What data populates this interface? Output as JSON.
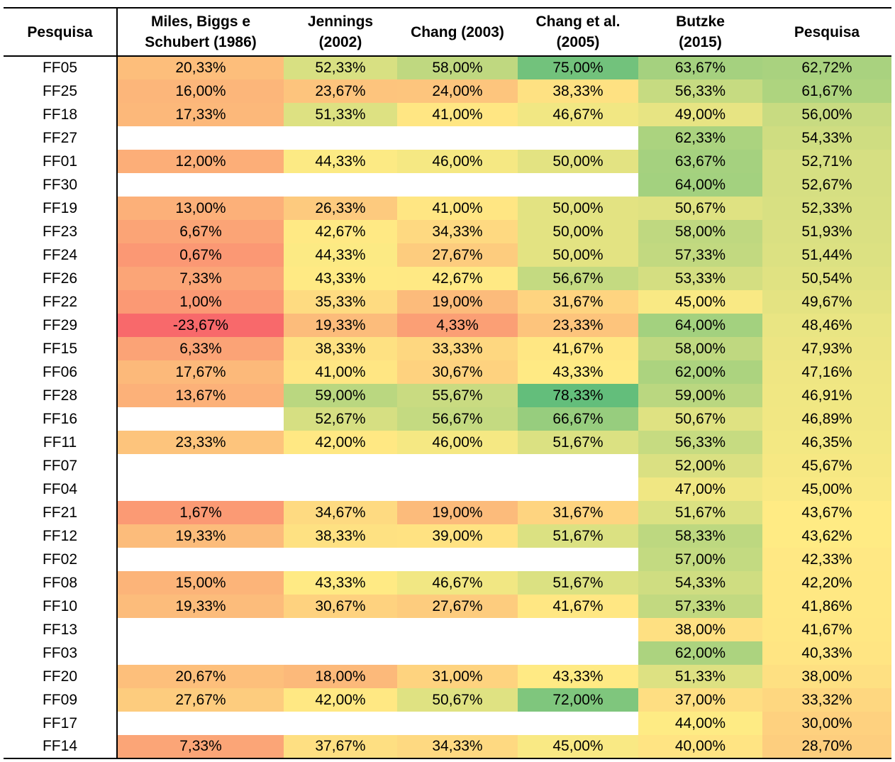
{
  "table": {
    "headers": [
      [
        "Pesquisa"
      ],
      [
        "Miles, Biggs e",
        "Schubert (1986)"
      ],
      [
        "Jennings",
        "(2002)"
      ],
      [
        "Chang (2003)"
      ],
      [
        "Chang et al.",
        "(2005)"
      ],
      [
        "Butzke",
        "(2015)"
      ],
      [
        "Pesquisa"
      ]
    ],
    "rows": [
      {
        "label": "FF05",
        "values": [
          "20,33%",
          "52,33%",
          "58,00%",
          "75,00%",
          "63,67%",
          "62,72%"
        ]
      },
      {
        "label": "FF25",
        "values": [
          "16,00%",
          "23,67%",
          "24,00%",
          "38,33%",
          "56,33%",
          "61,67%"
        ]
      },
      {
        "label": "FF18",
        "values": [
          "17,33%",
          "51,33%",
          "41,00%",
          "46,67%",
          "49,00%",
          "56,00%"
        ]
      },
      {
        "label": "FF27",
        "values": [
          "",
          "",
          "",
          "",
          "62,33%",
          "54,33%"
        ]
      },
      {
        "label": "FF01",
        "values": [
          "12,00%",
          "44,33%",
          "46,00%",
          "50,00%",
          "63,67%",
          "52,71%"
        ]
      },
      {
        "label": "FF30",
        "values": [
          "",
          "",
          "",
          "",
          "64,00%",
          "52,67%"
        ]
      },
      {
        "label": "FF19",
        "values": [
          "13,00%",
          "26,33%",
          "41,00%",
          "50,00%",
          "50,67%",
          "52,33%"
        ]
      },
      {
        "label": "FF23",
        "values": [
          "6,67%",
          "42,67%",
          "34,33%",
          "50,00%",
          "58,00%",
          "51,93%"
        ]
      },
      {
        "label": "FF24",
        "values": [
          "0,67%",
          "44,33%",
          "27,67%",
          "50,00%",
          "57,33%",
          "51,44%"
        ]
      },
      {
        "label": "FF26",
        "values": [
          "7,33%",
          "43,33%",
          "42,67%",
          "56,67%",
          "53,33%",
          "50,54%"
        ]
      },
      {
        "label": "FF22",
        "values": [
          "1,00%",
          "35,33%",
          "19,00%",
          "31,67%",
          "45,00%",
          "49,67%"
        ]
      },
      {
        "label": "FF29",
        "values": [
          "-23,67%",
          "19,33%",
          "4,33%",
          "23,33%",
          "64,00%",
          "48,46%"
        ]
      },
      {
        "label": "FF15",
        "values": [
          "6,33%",
          "38,33%",
          "33,33%",
          "41,67%",
          "58,00%",
          "47,93%"
        ]
      },
      {
        "label": "FF06",
        "values": [
          "17,67%",
          "41,00%",
          "30,67%",
          "43,33%",
          "62,00%",
          "47,16%"
        ]
      },
      {
        "label": "FF28",
        "values": [
          "13,67%",
          "59,00%",
          "55,67%",
          "78,33%",
          "59,00%",
          "46,91%"
        ]
      },
      {
        "label": "FF16",
        "values": [
          "",
          "52,67%",
          "56,67%",
          "66,67%",
          "50,67%",
          "46,89%"
        ]
      },
      {
        "label": "FF11",
        "values": [
          "23,33%",
          "42,00%",
          "46,00%",
          "51,67%",
          "56,33%",
          "46,35%"
        ]
      },
      {
        "label": "FF07",
        "values": [
          "",
          "",
          "",
          "",
          "52,00%",
          "45,67%"
        ]
      },
      {
        "label": "FF04",
        "values": [
          "",
          "",
          "",
          "",
          "47,00%",
          "45,00%"
        ]
      },
      {
        "label": "FF21",
        "values": [
          "1,67%",
          "34,67%",
          "19,00%",
          "31,67%",
          "51,67%",
          "43,67%"
        ]
      },
      {
        "label": "FF12",
        "values": [
          "19,33%",
          "38,33%",
          "39,00%",
          "51,67%",
          "58,33%",
          "43,62%"
        ]
      },
      {
        "label": "FF02",
        "values": [
          "",
          "",
          "",
          "",
          "57,00%",
          "42,33%"
        ]
      },
      {
        "label": "FF08",
        "values": [
          "15,00%",
          "43,33%",
          "46,67%",
          "51,67%",
          "54,33%",
          "42,20%"
        ]
      },
      {
        "label": "FF10",
        "values": [
          "19,33%",
          "30,67%",
          "27,67%",
          "41,67%",
          "57,33%",
          "41,86%"
        ]
      },
      {
        "label": "FF13",
        "values": [
          "",
          "",
          "",
          "",
          "38,00%",
          "41,67%"
        ]
      },
      {
        "label": "FF03",
        "values": [
          "",
          "",
          "",
          "",
          "62,00%",
          "40,33%"
        ]
      },
      {
        "label": "FF20",
        "values": [
          "20,67%",
          "18,00%",
          "31,00%",
          "43,33%",
          "51,33%",
          "38,00%"
        ]
      },
      {
        "label": "FF09",
        "values": [
          "27,67%",
          "42,00%",
          "50,67%",
          "72,00%",
          "37,00%",
          "33,32%"
        ]
      },
      {
        "label": "FF17",
        "values": [
          "",
          "",
          "",
          "",
          "44,00%",
          "30,00%"
        ]
      },
      {
        "label": "FF14",
        "values": [
          "7,33%",
          "37,67%",
          "34,33%",
          "45,00%",
          "40,00%",
          "28,70%"
        ]
      }
    ]
  },
  "color_scale": {
    "low": "#f8696b",
    "mid": "#ffeb84",
    "high": "#63be7b"
  }
}
